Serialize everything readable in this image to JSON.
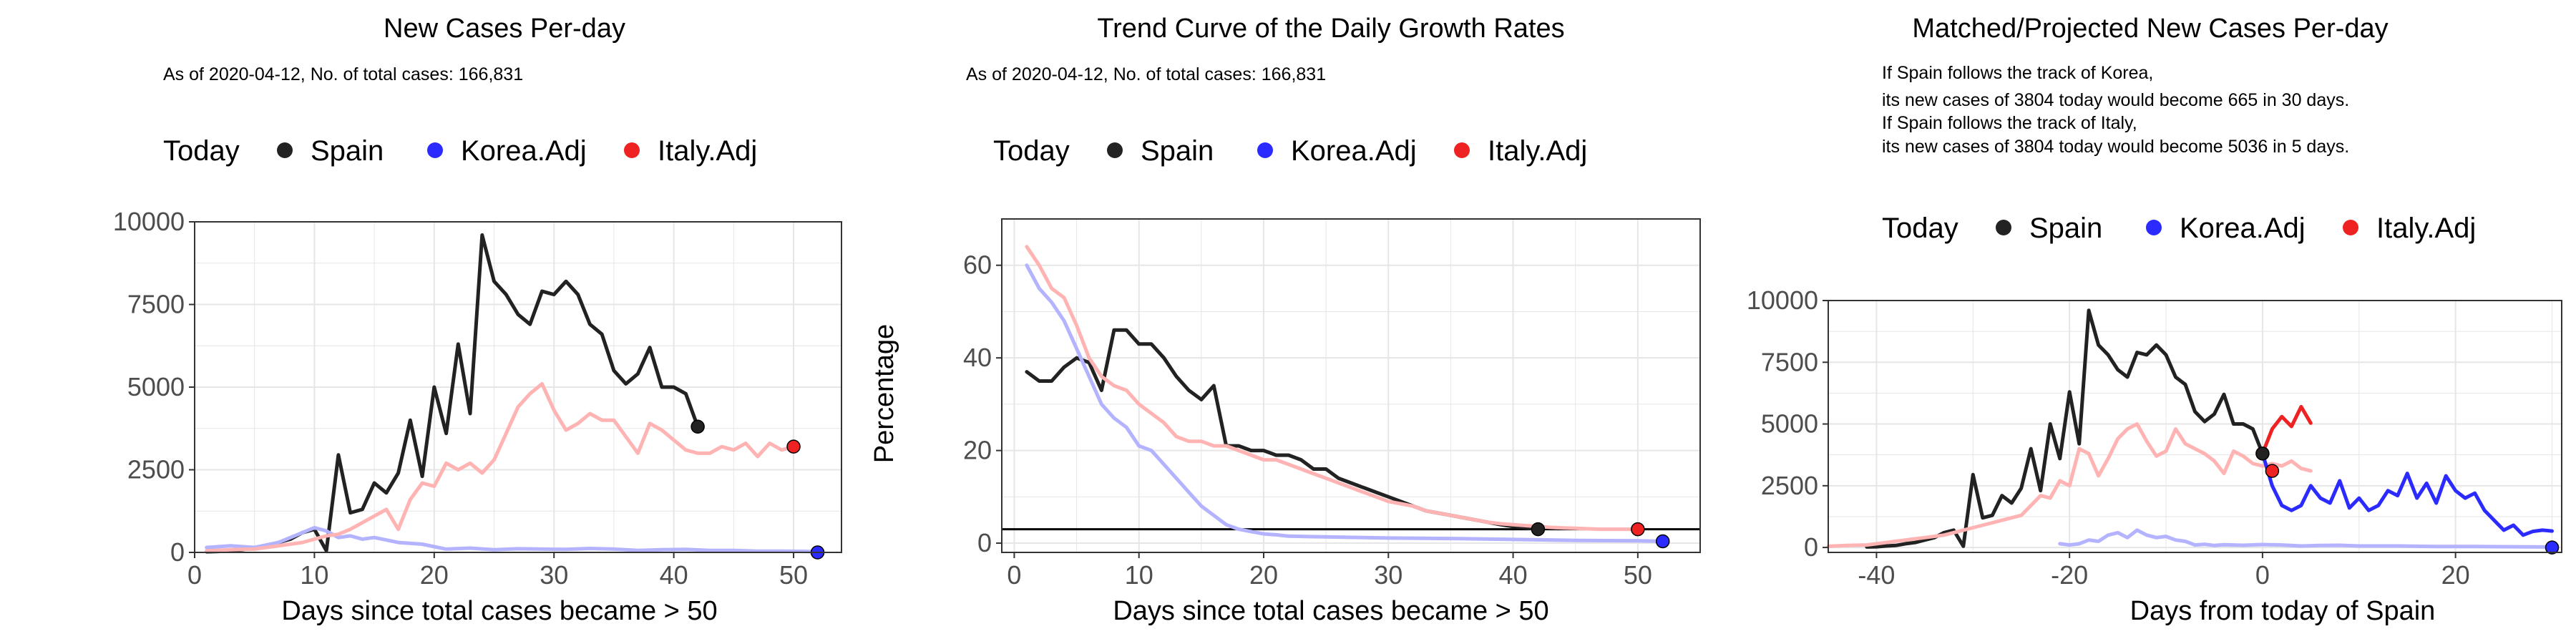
{
  "panels": [
    {
      "title": "New Cases Per-day",
      "subtitle": [
        "As of 2020-04-12, No. of total cases: 166,831"
      ],
      "legend": {
        "title": "Today",
        "items": [
          "Spain",
          "Korea.Adj",
          "Italy.Adj"
        ]
      },
      "xlabel": "Days since total cases became > 50",
      "ylabel": ""
    },
    {
      "title": "Trend Curve of the Daily Growth Rates",
      "subtitle": [
        "As of 2020-04-12, No. of total cases: 166,831"
      ],
      "legend": {
        "title": "Today",
        "items": [
          "Spain",
          "Korea.Adj",
          "Italy.Adj"
        ]
      },
      "xlabel": "Days since total cases became > 50",
      "ylabel": "Percentage"
    },
    {
      "title": "Matched/Projected New Cases Per-day",
      "subtitle": [
        "If Spain follows the track of Korea,",
        "its new cases of 3804 today would become 665 in 30 days.",
        "If Spain follows the track of Italy,",
        "its new cases of 3804 today would become 5036 in 5 days."
      ],
      "legend": {
        "title": "Today",
        "items": [
          "Spain",
          "Korea.Adj",
          "Italy.Adj"
        ]
      },
      "xlabel": "Days from today of Spain",
      "ylabel": ""
    }
  ],
  "colors": {
    "spain": "#222222",
    "korea": "#2b2bff",
    "italy": "#ee2222",
    "korea_faint": "#b3b3ff",
    "italy_faint": "#ffb3b3",
    "grid": "#e6e6e6",
    "border": "#333333"
  },
  "chart_data": [
    {
      "type": "line",
      "xlim": [
        0,
        54
      ],
      "ylim": [
        0,
        10000
      ],
      "xticks": [
        0,
        10,
        20,
        30,
        40,
        50
      ],
      "yticks": [
        0,
        2500,
        5000,
        7500,
        10000
      ],
      "ytick_labels": [
        "0",
        "2500",
        "5000",
        "7500",
        "10000"
      ],
      "grid": true,
      "series": [
        {
          "name": "Spain",
          "color_key": "spain",
          "x": [
            1,
            2,
            3,
            4,
            5,
            6,
            7,
            8,
            9,
            10,
            11,
            12,
            13,
            14,
            15,
            16,
            17,
            18,
            19,
            20,
            21,
            22,
            23,
            24,
            25,
            26,
            27,
            28,
            29,
            30,
            31,
            32,
            33,
            34,
            35,
            36,
            37,
            38,
            39,
            40,
            41,
            42
          ],
          "y": [
            20,
            30,
            60,
            80,
            150,
            200,
            300,
            400,
            600,
            700,
            50,
            2950,
            1200,
            1300,
            2100,
            1800,
            2400,
            4000,
            2300,
            5000,
            3600,
            6300,
            4200,
            9600,
            8200,
            7800,
            7200,
            6900,
            7900,
            7800,
            8200,
            7800,
            6900,
            6600,
            5500,
            5100,
            5400,
            6200,
            5000,
            5000,
            4800,
            3804
          ]
        },
        {
          "name": "Korea.Adj",
          "color_key": "korea_faint",
          "x": [
            1,
            3,
            5,
            7,
            9,
            10,
            11,
            12,
            13,
            14,
            15,
            17,
            19,
            21,
            23,
            25,
            27,
            29,
            31,
            33,
            35,
            37,
            39,
            41,
            43,
            45,
            47,
            49,
            51,
            52
          ],
          "y": [
            150,
            200,
            150,
            300,
            600,
            750,
            650,
            450,
            500,
            400,
            450,
            300,
            250,
            100,
            130,
            80,
            110,
            100,
            90,
            120,
            100,
            60,
            80,
            90,
            60,
            60,
            40,
            40,
            30,
            20
          ]
        },
        {
          "name": "Italy.Adj",
          "color_key": "italy_faint",
          "x": [
            1,
            3,
            5,
            7,
            9,
            10,
            11,
            12,
            13,
            14,
            15,
            16,
            17,
            18,
            19,
            20,
            21,
            22,
            23,
            24,
            25,
            26,
            27,
            28,
            29,
            30,
            31,
            32,
            33,
            34,
            35,
            36,
            37,
            38,
            39,
            40,
            41,
            42,
            43,
            44,
            45,
            46,
            47,
            48,
            49,
            50
          ],
          "y": [
            50,
            80,
            100,
            200,
            300,
            400,
            500,
            550,
            700,
            900,
            1100,
            1300,
            700,
            1600,
            2100,
            2000,
            2700,
            2500,
            2700,
            2400,
            2800,
            3600,
            4400,
            4800,
            5100,
            4300,
            3700,
            3900,
            4200,
            4000,
            4000,
            3500,
            3000,
            3900,
            3700,
            3400,
            3100,
            3000,
            3000,
            3200,
            3100,
            3300,
            2900,
            3300,
            3100,
            3200
          ]
        }
      ],
      "today_points": [
        {
          "series": "Spain",
          "x": 42,
          "y": 3804
        },
        {
          "series": "Korea.Adj",
          "x": 52,
          "y": 0
        },
        {
          "series": "Italy.Adj",
          "x": 50,
          "y": 3200
        }
      ]
    },
    {
      "type": "line",
      "xlim": [
        -1,
        55
      ],
      "ylim": [
        -2,
        70
      ],
      "xticks": [
        0,
        10,
        20,
        30,
        40,
        50
      ],
      "yticks": [
        0,
        20,
        40,
        60
      ],
      "ytick_labels": [
        "0",
        "20",
        "40",
        "60"
      ],
      "grid": true,
      "hline": 3,
      "series": [
        {
          "name": "Spain",
          "color_key": "spain",
          "x": [
            1,
            2,
            3,
            4,
            5,
            6,
            7,
            8,
            9,
            10,
            11,
            12,
            13,
            14,
            15,
            16,
            17,
            18,
            19,
            20,
            21,
            22,
            23,
            24,
            25,
            26,
            27,
            28,
            29,
            30,
            31,
            32,
            33,
            34,
            35,
            36,
            37,
            38,
            39,
            40,
            41,
            42
          ],
          "y": [
            37,
            35,
            35,
            38,
            40,
            39,
            33,
            46,
            46,
            43,
            43,
            40,
            36,
            33,
            31,
            34,
            21,
            21,
            20,
            20,
            19,
            19,
            18,
            16,
            16,
            14,
            13,
            12,
            11,
            10,
            9,
            8,
            7,
            6.5,
            6,
            5.5,
            5,
            4.5,
            4,
            3.6,
            3.3,
            3
          ]
        },
        {
          "name": "Korea.Adj",
          "color_key": "korea_faint",
          "x": [
            1,
            2,
            3,
            4,
            5,
            6,
            7,
            8,
            9,
            10,
            11,
            12,
            13,
            14,
            15,
            16,
            17,
            18,
            19,
            20,
            21,
            22,
            24,
            26,
            28,
            30,
            35,
            40,
            45,
            50,
            52
          ],
          "y": [
            60,
            55,
            52,
            48,
            42,
            36,
            30,
            27,
            25,
            21,
            20,
            17,
            14,
            11,
            8,
            6,
            4,
            3,
            2.5,
            2,
            1.8,
            1.5,
            1.4,
            1.3,
            1.2,
            1.1,
            1,
            0.8,
            0.6,
            0.5,
            0.4
          ]
        },
        {
          "name": "Italy.Adj",
          "color_key": "italy_faint",
          "x": [
            1,
            2,
            3,
            4,
            5,
            6,
            7,
            8,
            9,
            10,
            11,
            12,
            13,
            14,
            15,
            16,
            17,
            18,
            19,
            20,
            21,
            22,
            23,
            24,
            25,
            26,
            27,
            28,
            29,
            30,
            31,
            32,
            33,
            34,
            35,
            36,
            37,
            38,
            39,
            40,
            41,
            42,
            43,
            44,
            45,
            46,
            47,
            48,
            49,
            50
          ],
          "y": [
            64,
            60,
            55,
            53,
            47,
            40,
            36,
            34,
            33,
            30,
            28,
            26,
            23,
            22,
            22,
            21,
            21,
            20,
            19,
            18,
            18,
            17,
            16,
            15,
            14,
            13,
            12,
            11,
            10,
            9,
            8.5,
            8,
            7,
            6.5,
            6,
            5.5,
            5,
            4.5,
            4.2,
            4,
            3.8,
            3.6,
            3.4,
            3.3,
            3.2,
            3.1,
            3,
            3,
            3,
            3
          ]
        }
      ],
      "today_points": [
        {
          "series": "Spain",
          "x": 42,
          "y": 3
        },
        {
          "series": "Korea.Adj",
          "x": 52,
          "y": 0.4
        },
        {
          "series": "Italy.Adj",
          "x": 50,
          "y": 3
        }
      ]
    },
    {
      "type": "line",
      "xlim": [
        -45,
        31
      ],
      "ylim": [
        -200,
        10000
      ],
      "xticks": [
        -40,
        -20,
        0,
        20
      ],
      "yticks": [
        0,
        2500,
        5000,
        7500,
        10000
      ],
      "ytick_labels": [
        "0",
        "2500",
        "5000",
        "7500",
        "10000"
      ],
      "grid": true,
      "series": [
        {
          "name": "Spain",
          "color_key": "spain",
          "x": [
            -41,
            -40,
            -39,
            -38,
            -37,
            -36,
            -35,
            -34,
            -33,
            -32,
            -31,
            -30,
            -29,
            -28,
            -27,
            -26,
            -25,
            -24,
            -23,
            -22,
            -21,
            -20,
            -19,
            -18,
            -17,
            -16,
            -15,
            -14,
            -13,
            -12,
            -11,
            -10,
            -9,
            -8,
            -7,
            -6,
            -5,
            -4,
            -3,
            -2,
            -1,
            0
          ],
          "y": [
            20,
            30,
            60,
            80,
            150,
            200,
            300,
            400,
            600,
            700,
            50,
            2950,
            1200,
            1300,
            2100,
            1800,
            2400,
            4000,
            2300,
            5000,
            3600,
            6300,
            4200,
            9600,
            8200,
            7800,
            7200,
            6900,
            7900,
            7800,
            8200,
            7800,
            6900,
            6600,
            5500,
            5100,
            5400,
            6200,
            5000,
            5000,
            4800,
            3804
          ]
        },
        {
          "name": "Korea.Adj (history)",
          "color_key": "korea_faint",
          "x": [
            -21,
            -20,
            -19,
            -18,
            -17,
            -16,
            -15,
            -14,
            -13,
            -12,
            -11,
            -10,
            -9,
            -8,
            -7,
            -6,
            -5,
            -4,
            -3,
            -2,
            0,
            2,
            4,
            6,
            8,
            10,
            14,
            18,
            22,
            26,
            30
          ],
          "y": [
            150,
            100,
            150,
            300,
            250,
            500,
            600,
            400,
            700,
            500,
            400,
            450,
            300,
            250,
            100,
            130,
            80,
            110,
            100,
            90,
            120,
            100,
            60,
            80,
            90,
            60,
            60,
            40,
            40,
            30,
            20
          ]
        },
        {
          "name": "Italy.Adj (history)",
          "color_key": "italy_faint",
          "x": [
            -45,
            -43,
            -41,
            -39,
            -37,
            -35,
            -33,
            -31,
            -29,
            -27,
            -25,
            -23,
            -22,
            -21,
            -20,
            -19,
            -18,
            -17,
            -16,
            -15,
            -14,
            -13,
            -12,
            -11,
            -10,
            -9,
            -8,
            -7,
            -6,
            -5,
            -4,
            -3,
            -2,
            -1,
            0,
            1,
            2,
            3,
            4,
            5
          ],
          "y": [
            50,
            80,
            100,
            200,
            300,
            400,
            500,
            700,
            900,
            1100,
            1300,
            2100,
            2000,
            2700,
            2500,
            4000,
            3800,
            2900,
            3600,
            4400,
            4800,
            5000,
            4300,
            3700,
            3900,
            4800,
            4200,
            4000,
            3800,
            3500,
            3000,
            3900,
            3700,
            3400,
            3300,
            3400,
            3300,
            3500,
            3200,
            3100
          ]
        },
        {
          "name": "Korea.Adj (projected)",
          "color_key": "korea",
          "x": [
            0,
            1,
            2,
            3,
            4,
            5,
            6,
            7,
            8,
            9,
            10,
            11,
            12,
            13,
            14,
            15,
            16,
            17,
            18,
            19,
            20,
            21,
            22,
            23,
            24,
            25,
            26,
            27,
            28,
            29,
            30
          ],
          "y": [
            3804,
            2500,
            1700,
            1500,
            1700,
            2500,
            2000,
            1800,
            2700,
            1600,
            2000,
            1500,
            1700,
            2300,
            2100,
            3000,
            2000,
            2600,
            1800,
            2900,
            2300,
            2000,
            2200,
            1500,
            1100,
            700,
            900,
            500,
            650,
            700,
            665
          ]
        },
        {
          "name": "Italy.Adj (projected)",
          "color_key": "italy",
          "x": [
            0,
            1,
            2,
            3,
            4,
            5
          ],
          "y": [
            3804,
            4800,
            5300,
            4900,
            5700,
            5036
          ]
        }
      ],
      "today_points": [
        {
          "series": "Spain",
          "x": 0,
          "y": 3804
        },
        {
          "series": "Korea.Adj",
          "x": 30,
          "y": 0
        },
        {
          "series": "Italy.Adj",
          "x": 1,
          "y": 3100
        }
      ]
    }
  ]
}
